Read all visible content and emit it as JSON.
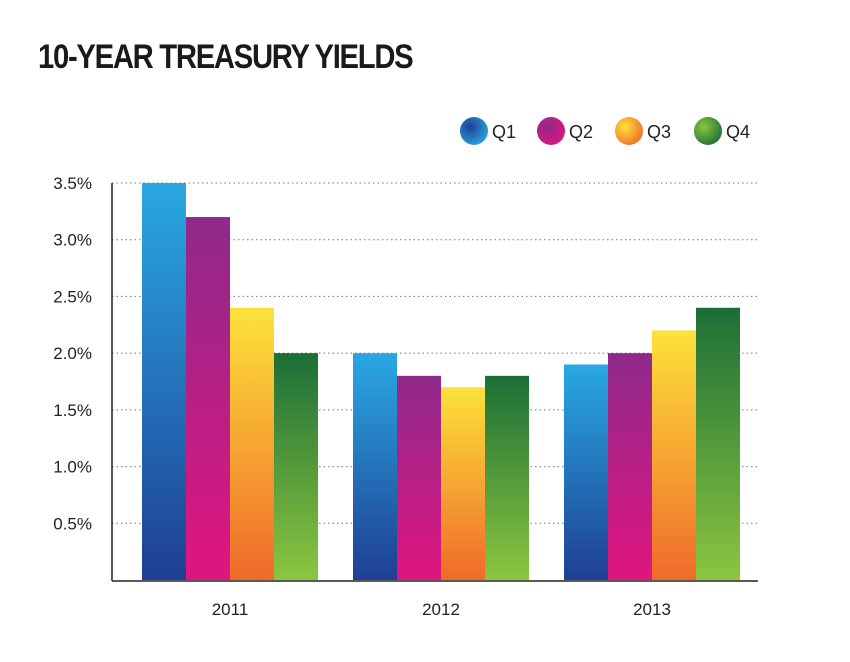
{
  "chart_data": {
    "type": "bar",
    "title": "10-YEAR TREASURY YIELDS",
    "xlabel": "",
    "ylabel": "",
    "categories": [
      "2011",
      "2012",
      "2013"
    ],
    "series": [
      {
        "name": "Q1",
        "values": [
          3.5,
          2.0,
          1.9
        ],
        "colors": [
          "#29a8e2",
          "#1f3f93"
        ]
      },
      {
        "name": "Q2",
        "values": [
          3.2,
          1.8,
          2.0
        ],
        "colors": [
          "#8e2a8b",
          "#e0157f"
        ]
      },
      {
        "name": "Q3",
        "values": [
          2.4,
          1.7,
          2.2
        ],
        "colors": [
          "#fde23a",
          "#ef6a2a"
        ]
      },
      {
        "name": "Q4",
        "values": [
          2.0,
          1.8,
          2.4
        ],
        "colors": [
          "#1b6e37",
          "#8cc63f"
        ]
      }
    ],
    "ylim": [
      0,
      3.5
    ],
    "yticks": [
      0.5,
      1.0,
      1.5,
      2.0,
      2.5,
      3.0,
      3.5
    ],
    "ytick_labels": [
      "0.5%",
      "1.0%",
      "1.5%",
      "2.0%",
      "2.5%",
      "3.0%",
      "3.5%"
    ],
    "grid": "dotted horizontal",
    "legend_position": "top-right"
  }
}
